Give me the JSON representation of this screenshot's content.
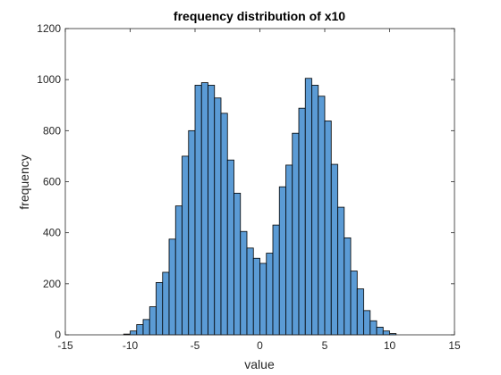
{
  "chart_data": {
    "type": "bar",
    "title": "frequency distribution of x10",
    "xlabel": "value",
    "ylabel": "frequency",
    "xlim": [
      -15,
      15
    ],
    "ylim": [
      0,
      1200
    ],
    "xticks": [
      -15,
      -10,
      -5,
      0,
      5,
      10,
      15
    ],
    "yticks": [
      0,
      200,
      400,
      600,
      800,
      1000,
      1200
    ],
    "grid": false,
    "legend": "none",
    "bar_color": "#5b9bd5",
    "bins": [
      {
        "x0": -10.5,
        "x1": -10.0,
        "value": 3
      },
      {
        "x0": -10.0,
        "x1": -9.5,
        "value": 15
      },
      {
        "x0": -9.5,
        "x1": -9.0,
        "value": 40
      },
      {
        "x0": -9.0,
        "x1": -8.5,
        "value": 60
      },
      {
        "x0": -8.5,
        "x1": -8.0,
        "value": 110
      },
      {
        "x0": -8.0,
        "x1": -7.5,
        "value": 205
      },
      {
        "x0": -7.5,
        "x1": -7.0,
        "value": 245
      },
      {
        "x0": -7.0,
        "x1": -6.5,
        "value": 375
      },
      {
        "x0": -6.5,
        "x1": -6.0,
        "value": 505
      },
      {
        "x0": -6.0,
        "x1": -5.5,
        "value": 700
      },
      {
        "x0": -5.5,
        "x1": -5.0,
        "value": 800
      },
      {
        "x0": -5.0,
        "x1": -4.5,
        "value": 978
      },
      {
        "x0": -4.5,
        "x1": -4.0,
        "value": 988
      },
      {
        "x0": -4.0,
        "x1": -3.5,
        "value": 978
      },
      {
        "x0": -3.5,
        "x1": -3.0,
        "value": 928
      },
      {
        "x0": -3.0,
        "x1": -2.5,
        "value": 868
      },
      {
        "x0": -2.5,
        "x1": -2.0,
        "value": 685
      },
      {
        "x0": -2.0,
        "x1": -1.5,
        "value": 555
      },
      {
        "x0": -1.5,
        "x1": -1.0,
        "value": 405
      },
      {
        "x0": -1.0,
        "x1": -0.5,
        "value": 340
      },
      {
        "x0": -0.5,
        "x1": 0.0,
        "value": 300
      },
      {
        "x0": 0.0,
        "x1": 0.5,
        "value": 280
      },
      {
        "x0": 0.5,
        "x1": 1.0,
        "value": 320
      },
      {
        "x0": 1.0,
        "x1": 1.5,
        "value": 430
      },
      {
        "x0": 1.5,
        "x1": 2.0,
        "value": 580
      },
      {
        "x0": 2.0,
        "x1": 2.5,
        "value": 665
      },
      {
        "x0": 2.5,
        "x1": 3.0,
        "value": 790
      },
      {
        "x0": 3.0,
        "x1": 3.5,
        "value": 888
      },
      {
        "x0": 3.5,
        "x1": 4.0,
        "value": 1005
      },
      {
        "x0": 4.0,
        "x1": 4.5,
        "value": 978
      },
      {
        "x0": 4.5,
        "x1": 5.0,
        "value": 935
      },
      {
        "x0": 5.0,
        "x1": 5.5,
        "value": 838
      },
      {
        "x0": 5.5,
        "x1": 6.0,
        "value": 668
      },
      {
        "x0": 6.0,
        "x1": 6.5,
        "value": 500
      },
      {
        "x0": 6.5,
        "x1": 7.0,
        "value": 380
      },
      {
        "x0": 7.0,
        "x1": 7.5,
        "value": 250
      },
      {
        "x0": 7.5,
        "x1": 8.0,
        "value": 180
      },
      {
        "x0": 8.0,
        "x1": 8.5,
        "value": 95
      },
      {
        "x0": 8.5,
        "x1": 9.0,
        "value": 55
      },
      {
        "x0": 9.0,
        "x1": 9.5,
        "value": 30
      },
      {
        "x0": 9.5,
        "x1": 10.0,
        "value": 15
      },
      {
        "x0": 10.0,
        "x1": 10.5,
        "value": 5
      }
    ]
  }
}
